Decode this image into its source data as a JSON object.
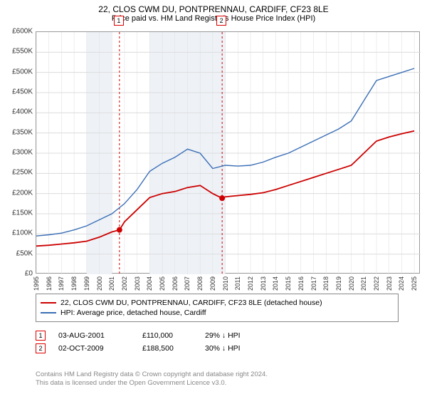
{
  "title": "22, CLOS CWM DU, PONTPRENNAU, CARDIFF, CF23 8LE",
  "subtitle": "Price paid vs. HM Land Registry's House Price Index (HPI)",
  "chart": {
    "type": "line",
    "background_color": "#ffffff",
    "border_color": "#999999",
    "grid_color": "#dcdcdc",
    "ylim": [
      0,
      600000
    ],
    "ytick_step": 50000,
    "y_ticks": [
      {
        "v": 0,
        "label": "£0"
      },
      {
        "v": 50000,
        "label": "£50K"
      },
      {
        "v": 100000,
        "label": "£100K"
      },
      {
        "v": 150000,
        "label": "£150K"
      },
      {
        "v": 200000,
        "label": "£200K"
      },
      {
        "v": 250000,
        "label": "£250K"
      },
      {
        "v": 300000,
        "label": "£300K"
      },
      {
        "v": 350000,
        "label": "£350K"
      },
      {
        "v": 400000,
        "label": "£400K"
      },
      {
        "v": 450000,
        "label": "£450K"
      },
      {
        "v": 500000,
        "label": "£500K"
      },
      {
        "v": 550000,
        "label": "£550K"
      },
      {
        "v": 600000,
        "label": "£600K"
      }
    ],
    "xlim": [
      1995,
      2025.5
    ],
    "x_ticks": [
      1995,
      1996,
      1997,
      1998,
      1999,
      2000,
      2001,
      2002,
      2003,
      2004,
      2005,
      2006,
      2007,
      2008,
      2009,
      2010,
      2011,
      2012,
      2013,
      2014,
      2015,
      2016,
      2017,
      2018,
      2019,
      2020,
      2021,
      2022,
      2023,
      2024,
      2025
    ],
    "shaded_bands": [
      {
        "from": 1999,
        "to": 2001,
        "color": "#eef2f7"
      },
      {
        "from": 2004,
        "to": 2010,
        "color": "#eef2f7"
      }
    ],
    "marker_line_color": "#d00000",
    "marker_dash": "3,3",
    "marker_lines": [
      {
        "id": "1",
        "x": 2001.6,
        "label_y_offset": -22
      },
      {
        "id": "2",
        "x": 2009.75,
        "label_y_offset": -22
      }
    ],
    "point_marker_color": "#d00000",
    "point_markers": [
      {
        "x": 2001.6,
        "y": 110000
      },
      {
        "x": 2009.75,
        "y": 188500
      }
    ],
    "series": [
      {
        "name": "property",
        "color": "#cc0000",
        "width": 1.8,
        "points": [
          [
            1995,
            70000
          ],
          [
            1996,
            72000
          ],
          [
            1997,
            75000
          ],
          [
            1998,
            78000
          ],
          [
            1999,
            82000
          ],
          [
            2000,
            92000
          ],
          [
            2001,
            105000
          ],
          [
            2001.6,
            110000
          ],
          [
            2002,
            130000
          ],
          [
            2003,
            160000
          ],
          [
            2004,
            190000
          ],
          [
            2005,
            200000
          ],
          [
            2006,
            205000
          ],
          [
            2007,
            215000
          ],
          [
            2008,
            220000
          ],
          [
            2009,
            200000
          ],
          [
            2009.75,
            188500
          ],
          [
            2010,
            192000
          ],
          [
            2011,
            195000
          ],
          [
            2012,
            198000
          ],
          [
            2013,
            202000
          ],
          [
            2014,
            210000
          ],
          [
            2015,
            220000
          ],
          [
            2016,
            230000
          ],
          [
            2017,
            240000
          ],
          [
            2018,
            250000
          ],
          [
            2019,
            260000
          ],
          [
            2020,
            270000
          ],
          [
            2021,
            300000
          ],
          [
            2022,
            330000
          ],
          [
            2023,
            340000
          ],
          [
            2024,
            348000
          ],
          [
            2025,
            355000
          ]
        ]
      },
      {
        "name": "hpi",
        "color": "#3b6fb6",
        "width": 1.4,
        "points": [
          [
            1995,
            95000
          ],
          [
            1996,
            98000
          ],
          [
            1997,
            102000
          ],
          [
            1998,
            110000
          ],
          [
            1999,
            120000
          ],
          [
            2000,
            135000
          ],
          [
            2001,
            150000
          ],
          [
            2002,
            175000
          ],
          [
            2003,
            210000
          ],
          [
            2004,
            255000
          ],
          [
            2005,
            275000
          ],
          [
            2006,
            290000
          ],
          [
            2007,
            310000
          ],
          [
            2008,
            300000
          ],
          [
            2009,
            262000
          ],
          [
            2010,
            270000
          ],
          [
            2011,
            268000
          ],
          [
            2012,
            270000
          ],
          [
            2013,
            278000
          ],
          [
            2014,
            290000
          ],
          [
            2015,
            300000
          ],
          [
            2016,
            315000
          ],
          [
            2017,
            330000
          ],
          [
            2018,
            345000
          ],
          [
            2019,
            360000
          ],
          [
            2020,
            380000
          ],
          [
            2021,
            430000
          ],
          [
            2022,
            480000
          ],
          [
            2023,
            490000
          ],
          [
            2024,
            500000
          ],
          [
            2025,
            510000
          ]
        ]
      }
    ],
    "label_fontsize": 10,
    "title_fontsize": 12
  },
  "legend": {
    "border_color": "#888888",
    "rows": [
      {
        "color": "#cc0000",
        "label": "22, CLOS CWM DU, PONTPRENNAU, CARDIFF, CF23 8LE (detached house)"
      },
      {
        "color": "#3b6fb6",
        "label": "HPI: Average price, detached house, Cardiff"
      }
    ]
  },
  "events": [
    {
      "id": "1",
      "date": "03-AUG-2001",
      "price": "£110,000",
      "hpi": "29% ↓ HPI"
    },
    {
      "id": "2",
      "date": "02-OCT-2009",
      "price": "£188,500",
      "hpi": "30% ↓ HPI"
    }
  ],
  "footnote_l1": "Contains HM Land Registry data © Crown copyright and database right 2024.",
  "footnote_l2": "This data is licensed under the Open Government Licence v3.0."
}
